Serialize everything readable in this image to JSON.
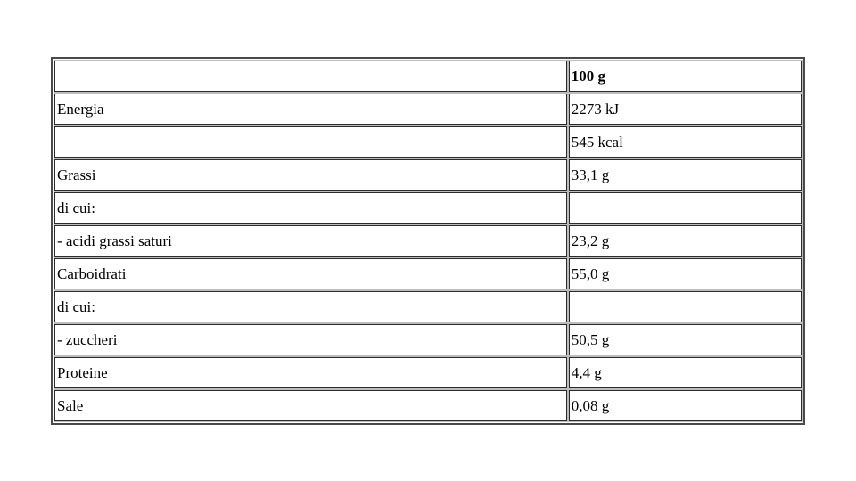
{
  "page": {
    "background_color": "#ffffff",
    "text_color": "#000000",
    "border_color": "#2b2b2b"
  },
  "table": {
    "description": "Nutrition facts table (Italian) per 100 g",
    "header": {
      "label": "",
      "value": "100 g"
    },
    "rows": [
      {
        "label": "Energia",
        "value": "2273 kJ"
      },
      {
        "label": "",
        "value": "545 kcal"
      },
      {
        "label": "Grassi",
        "value": "33,1 g"
      },
      {
        "label": "di cui:",
        "value": ""
      },
      {
        "label": "- acidi grassi saturi",
        "value": "23,2 g"
      },
      {
        "label": "Carboidrati",
        "value": "55,0 g"
      },
      {
        "label": "di cui:",
        "value": ""
      },
      {
        "label": "- zuccheri",
        "value": "50,5 g"
      },
      {
        "label": "Proteine",
        "value": "4,4 g"
      },
      {
        "label": "Sale",
        "value": "0,08 g"
      }
    ]
  }
}
